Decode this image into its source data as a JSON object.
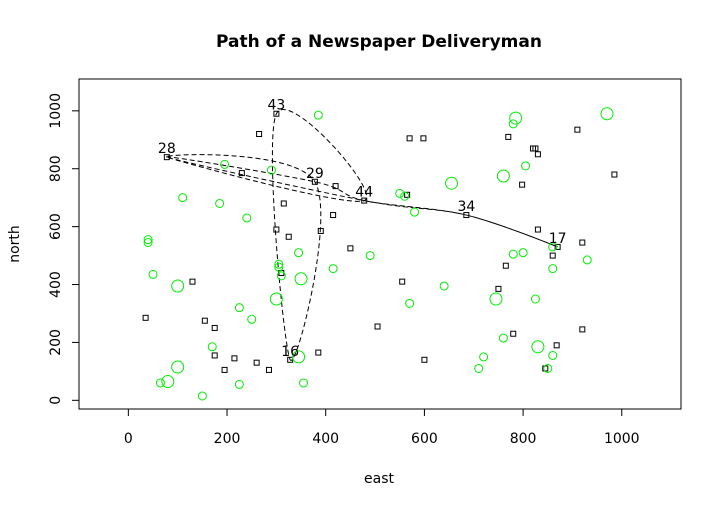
{
  "chart_data": {
    "type": "scatter",
    "title": "Path of a Newspaper Deliveryman",
    "xlabel": "east",
    "ylabel": "north",
    "xlim": [
      -100,
      1120
    ],
    "ylim": [
      -30,
      1110
    ],
    "xticks": [
      0,
      200,
      400,
      600,
      800,
      1000
    ],
    "yticks": [
      0,
      200,
      400,
      600,
      800,
      1000
    ],
    "grid": false,
    "legend": "none",
    "colors": {
      "squares": "#000000",
      "circles": "#00ee00",
      "path": "#000000",
      "axes": "#000000"
    },
    "path": {
      "style": "dashed",
      "closed": true,
      "order": [
        "28",
        "29",
        "44",
        "34",
        "17",
        "34",
        "44",
        "28",
        "29",
        "16",
        "43",
        "44"
      ],
      "points": [
        {
          "label": "28",
          "x": 78,
          "y": 840
        },
        {
          "label": "43",
          "x": 300,
          "y": 990
        },
        {
          "label": "29",
          "x": 378,
          "y": 755
        },
        {
          "label": "44",
          "x": 478,
          "y": 690
        },
        {
          "label": "34",
          "x": 685,
          "y": 640
        },
        {
          "label": "17",
          "x": 870,
          "y": 530
        },
        {
          "label": "16",
          "x": 328,
          "y": 140
        }
      ]
    },
    "squares": [
      {
        "x": 78,
        "y": 840
      },
      {
        "x": 300,
        "y": 990
      },
      {
        "x": 378,
        "y": 755
      },
      {
        "x": 478,
        "y": 690
      },
      {
        "x": 685,
        "y": 640
      },
      {
        "x": 870,
        "y": 530
      },
      {
        "x": 328,
        "y": 140
      },
      {
        "x": 265,
        "y": 920
      },
      {
        "x": 570,
        "y": 905
      },
      {
        "x": 598,
        "y": 905
      },
      {
        "x": 770,
        "y": 910
      },
      {
        "x": 820,
        "y": 870
      },
      {
        "x": 825,
        "y": 870
      },
      {
        "x": 830,
        "y": 850
      },
      {
        "x": 910,
        "y": 935
      },
      {
        "x": 985,
        "y": 780
      },
      {
        "x": 798,
        "y": 745
      },
      {
        "x": 230,
        "y": 785
      },
      {
        "x": 420,
        "y": 740
      },
      {
        "x": 565,
        "y": 710
      },
      {
        "x": 315,
        "y": 680
      },
      {
        "x": 415,
        "y": 640
      },
      {
        "x": 300,
        "y": 590
      },
      {
        "x": 325,
        "y": 565
      },
      {
        "x": 390,
        "y": 585
      },
      {
        "x": 450,
        "y": 525
      },
      {
        "x": 830,
        "y": 590
      },
      {
        "x": 860,
        "y": 500
      },
      {
        "x": 920,
        "y": 545
      },
      {
        "x": 765,
        "y": 465
      },
      {
        "x": 310,
        "y": 440
      },
      {
        "x": 555,
        "y": 410
      },
      {
        "x": 130,
        "y": 410
      },
      {
        "x": 750,
        "y": 385
      },
      {
        "x": 35,
        "y": 285
      },
      {
        "x": 155,
        "y": 275
      },
      {
        "x": 175,
        "y": 250
      },
      {
        "x": 505,
        "y": 255
      },
      {
        "x": 920,
        "y": 245
      },
      {
        "x": 780,
        "y": 230
      },
      {
        "x": 868,
        "y": 190
      },
      {
        "x": 175,
        "y": 155
      },
      {
        "x": 215,
        "y": 145
      },
      {
        "x": 195,
        "y": 105
      },
      {
        "x": 260,
        "y": 130
      },
      {
        "x": 285,
        "y": 105
      },
      {
        "x": 385,
        "y": 165
      },
      {
        "x": 600,
        "y": 140
      },
      {
        "x": 845,
        "y": 110
      }
    ],
    "circles": [
      {
        "x": 970,
        "y": 990,
        "r": 6
      },
      {
        "x": 785,
        "y": 975,
        "r": 6
      },
      {
        "x": 780,
        "y": 955,
        "r": 4
      },
      {
        "x": 385,
        "y": 985,
        "r": 4
      },
      {
        "x": 195,
        "y": 815,
        "r": 4
      },
      {
        "x": 805,
        "y": 810,
        "r": 4
      },
      {
        "x": 290,
        "y": 795,
        "r": 4
      },
      {
        "x": 760,
        "y": 775,
        "r": 6
      },
      {
        "x": 655,
        "y": 750,
        "r": 6
      },
      {
        "x": 550,
        "y": 715,
        "r": 4
      },
      {
        "x": 560,
        "y": 705,
        "r": 4
      },
      {
        "x": 110,
        "y": 700,
        "r": 4
      },
      {
        "x": 185,
        "y": 680,
        "r": 4
      },
      {
        "x": 580,
        "y": 650,
        "r": 4
      },
      {
        "x": 240,
        "y": 630,
        "r": 4
      },
      {
        "x": 40,
        "y": 555,
        "r": 4
      },
      {
        "x": 40,
        "y": 545,
        "r": 4
      },
      {
        "x": 345,
        "y": 510,
        "r": 4
      },
      {
        "x": 490,
        "y": 500,
        "r": 4
      },
      {
        "x": 780,
        "y": 505,
        "r": 4
      },
      {
        "x": 800,
        "y": 510,
        "r": 4
      },
      {
        "x": 860,
        "y": 530,
        "r": 4
      },
      {
        "x": 930,
        "y": 485,
        "r": 4
      },
      {
        "x": 305,
        "y": 470,
        "r": 4
      },
      {
        "x": 305,
        "y": 460,
        "r": 4
      },
      {
        "x": 415,
        "y": 455,
        "r": 4
      },
      {
        "x": 860,
        "y": 455,
        "r": 4
      },
      {
        "x": 310,
        "y": 430,
        "r": 4
      },
      {
        "x": 50,
        "y": 435,
        "r": 4
      },
      {
        "x": 350,
        "y": 420,
        "r": 6
      },
      {
        "x": 100,
        "y": 395,
        "r": 6
      },
      {
        "x": 640,
        "y": 395,
        "r": 4
      },
      {
        "x": 300,
        "y": 350,
        "r": 6
      },
      {
        "x": 745,
        "y": 350,
        "r": 6
      },
      {
        "x": 825,
        "y": 350,
        "r": 4
      },
      {
        "x": 570,
        "y": 335,
        "r": 4
      },
      {
        "x": 225,
        "y": 320,
        "r": 4
      },
      {
        "x": 250,
        "y": 280,
        "r": 4
      },
      {
        "x": 760,
        "y": 215,
        "r": 4
      },
      {
        "x": 830,
        "y": 185,
        "r": 6
      },
      {
        "x": 170,
        "y": 185,
        "r": 4
      },
      {
        "x": 860,
        "y": 155,
        "r": 4
      },
      {
        "x": 345,
        "y": 150,
        "r": 6
      },
      {
        "x": 720,
        "y": 150,
        "r": 4
      },
      {
        "x": 100,
        "y": 115,
        "r": 6
      },
      {
        "x": 710,
        "y": 110,
        "r": 4
      },
      {
        "x": 850,
        "y": 110,
        "r": 4
      },
      {
        "x": 80,
        "y": 65,
        "r": 6
      },
      {
        "x": 65,
        "y": 60,
        "r": 4
      },
      {
        "x": 225,
        "y": 55,
        "r": 4
      },
      {
        "x": 355,
        "y": 60,
        "r": 4
      },
      {
        "x": 150,
        "y": 15,
        "r": 4
      }
    ]
  }
}
